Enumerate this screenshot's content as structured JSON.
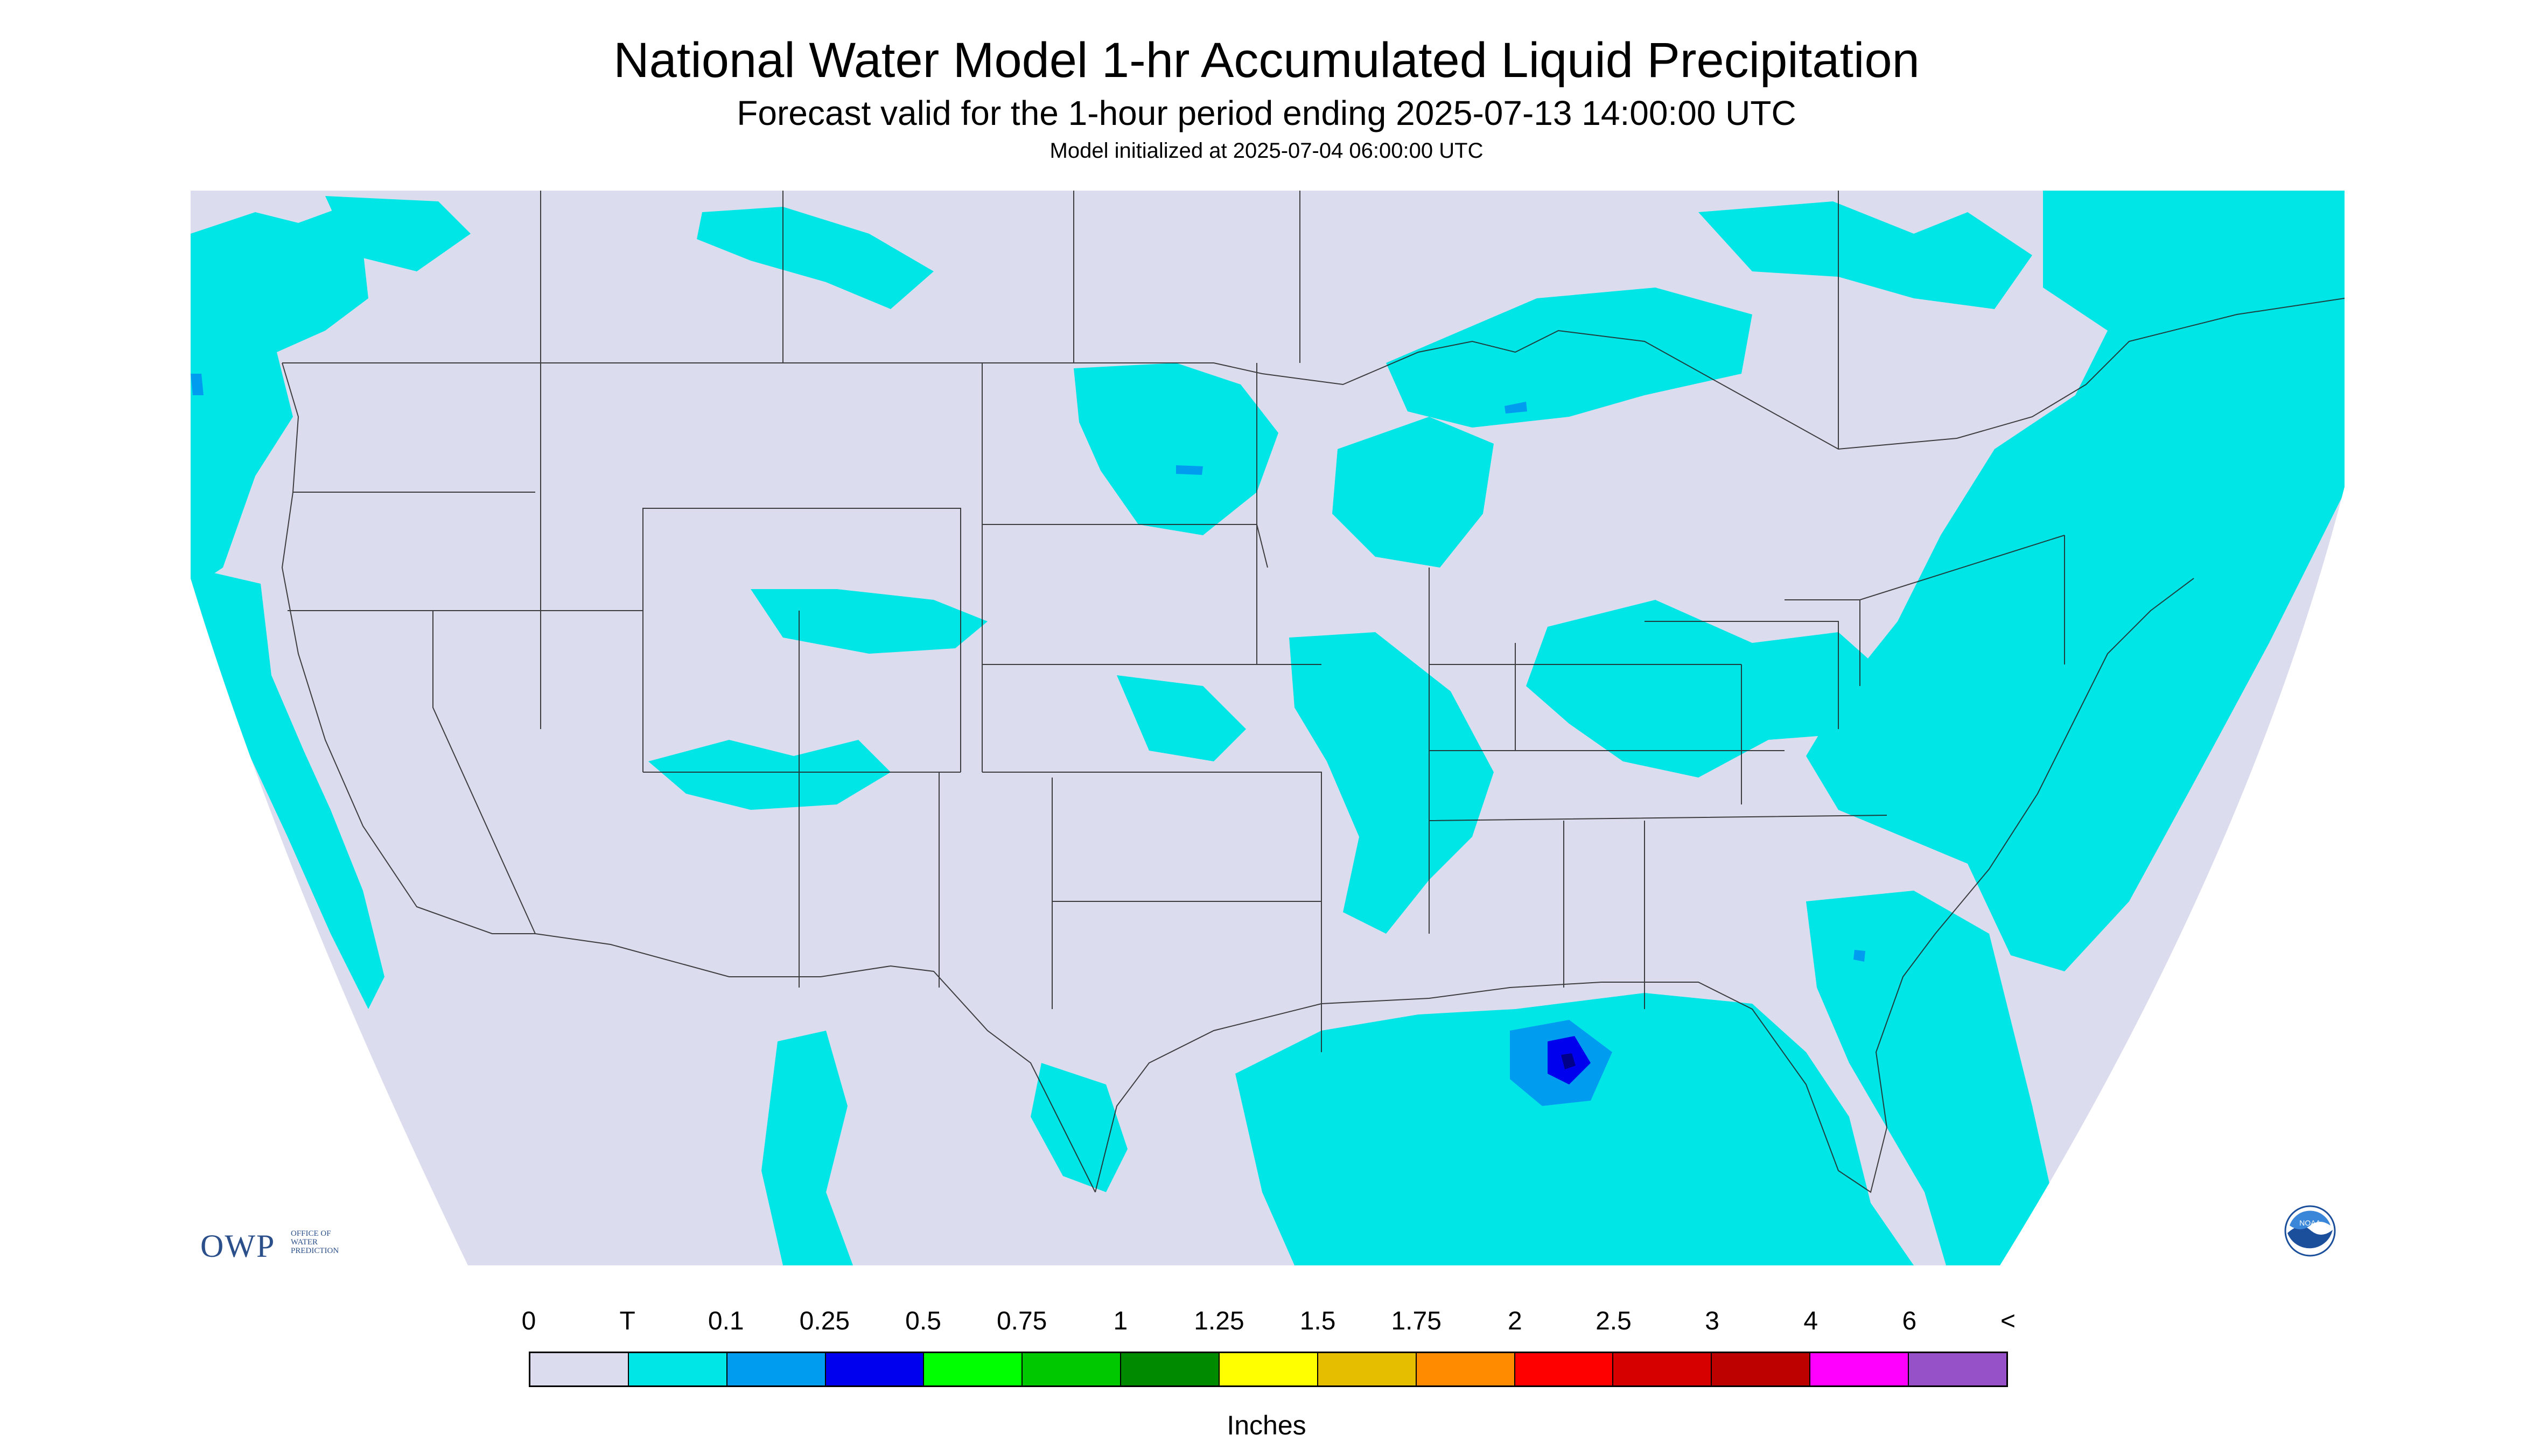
{
  "title": "National Water Model 1-hr Accumulated Liquid Precipitation",
  "subtitle": "Forecast valid for the 1-hour period ending 2025-07-13 14:00:00 UTC",
  "init_text": "Model initialized at 2025-07-04 06:00:00 UTC",
  "logos": {
    "owp_text": "OWP",
    "owp_sub": "OFFICE OF WATER PREDICTION",
    "noaa_text": "NOAA"
  },
  "legend": {
    "units": "Inches",
    "labels": [
      "0",
      "T",
      "0.1",
      "0.25",
      "0.5",
      "0.75",
      "1",
      "1.25",
      "1.5",
      "1.75",
      "2",
      "2.5",
      "3",
      "4",
      "6",
      "<"
    ],
    "colors": [
      "#dcdcef",
      "#00e5e5",
      "#009cf0",
      "#0000ee",
      "#00ff00",
      "#00c800",
      "#008a00",
      "#ffff00",
      "#e6be00",
      "#ff8c00",
      "#ff0000",
      "#d70000",
      "#bd0000",
      "#ff00ff",
      "#9650c8"
    ]
  },
  "map_colors": {
    "background": "#dcdcef",
    "outside": "#ffffff",
    "trace": "#00e5e5",
    "light": "#009cf0",
    "moderate": "#0000ee",
    "heavy": "#00008b"
  }
}
